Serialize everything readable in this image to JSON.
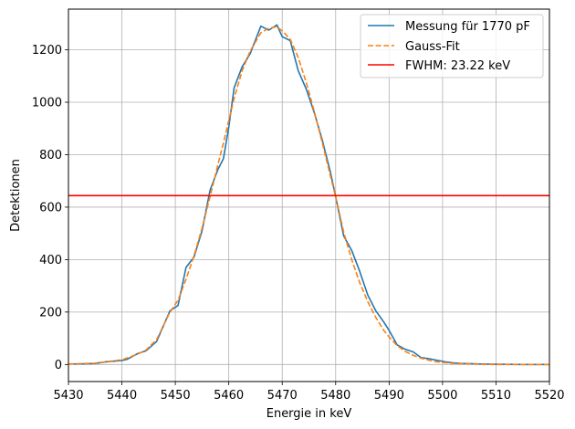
{
  "chart_data": {
    "type": "line",
    "xlabel": "Energie in keV",
    "ylabel": "Detektionen",
    "xlim": [
      5430,
      5520
    ],
    "ylim": [
      -65,
      1355
    ],
    "xticks": [
      5430,
      5440,
      5450,
      5460,
      5470,
      5480,
      5490,
      5500,
      5510,
      5520
    ],
    "yticks": [
      0,
      200,
      400,
      600,
      800,
      1000,
      1200
    ],
    "grid": true,
    "legend_position": "top-right",
    "series": [
      {
        "name": "Messung für 1770 pF",
        "color": "#1f77b4",
        "dash": "solid",
        "x": [
          5430,
          5432,
          5435,
          5437,
          5440,
          5441,
          5443,
          5444.5,
          5446.5,
          5449,
          5450.5,
          5452,
          5453.5,
          5455,
          5456.5,
          5458,
          5459,
          5460,
          5461,
          5462.5,
          5464,
          5466,
          5467.5,
          5469,
          5470,
          5471.5,
          5473,
          5474.5,
          5476,
          5477.5,
          5479,
          5480,
          5481.5,
          5483,
          5484.5,
          5486,
          5487.5,
          5489,
          5490,
          5491.5,
          5493,
          5494.5,
          5496,
          5497.5,
          5499,
          5500.5,
          5502,
          5503.5,
          5505,
          5507,
          5510,
          5515,
          5520
        ],
        "y": [
          2,
          2,
          4,
          10,
          15,
          20,
          42,
          52,
          88,
          205,
          225,
          370,
          410,
          510,
          665,
          745,
          785,
          905,
          1055,
          1135,
          1185,
          1290,
          1275,
          1295,
          1250,
          1235,
          1120,
          1050,
          960,
          855,
          735,
          640,
          490,
          435,
          355,
          265,
          205,
          162,
          130,
          75,
          58,
          48,
          26,
          22,
          16,
          10,
          6,
          4,
          3,
          2,
          1,
          0,
          0
        ]
      },
      {
        "name": "Gauss-Fit",
        "color": "#ff7f0e",
        "dash": "dashed",
        "x": [
          5430,
          5432,
          5435,
          5437,
          5440,
          5441,
          5443,
          5444.5,
          5446.5,
          5449,
          5450.5,
          5452,
          5453.5,
          5455,
          5456.5,
          5458,
          5459,
          5460,
          5461,
          5462.5,
          5464,
          5466,
          5467.5,
          5469,
          5470,
          5471.5,
          5473,
          5474.5,
          5476,
          5477.5,
          5479,
          5480,
          5481.5,
          5483,
          5484.5,
          5486,
          5487.5,
          5489,
          5490,
          5491.5,
          5493,
          5494.5,
          5496,
          5497.5,
          5499,
          5500.5,
          5502,
          5503.5,
          5505,
          5507,
          5510,
          5515,
          5520
        ],
        "y": [
          2,
          3,
          5,
          10,
          18,
          25,
          40,
          55,
          95,
          200,
          245,
          325,
          415,
          520,
          640,
          765,
          845,
          930,
          1015,
          1120,
          1195,
          1265,
          1282,
          1288,
          1272,
          1240,
          1170,
          1075,
          965,
          845,
          720,
          640,
          505,
          400,
          312,
          240,
          180,
          130,
          105,
          72,
          50,
          35,
          24,
          16,
          10,
          7,
          4,
          3,
          2,
          1,
          0,
          0,
          0
        ]
      },
      {
        "name": "FWHM: 23.22 keV",
        "color": "#ff0000",
        "dash": "solid",
        "x": [
          5430,
          5520
        ],
        "y": [
          644,
          644
        ]
      }
    ]
  }
}
